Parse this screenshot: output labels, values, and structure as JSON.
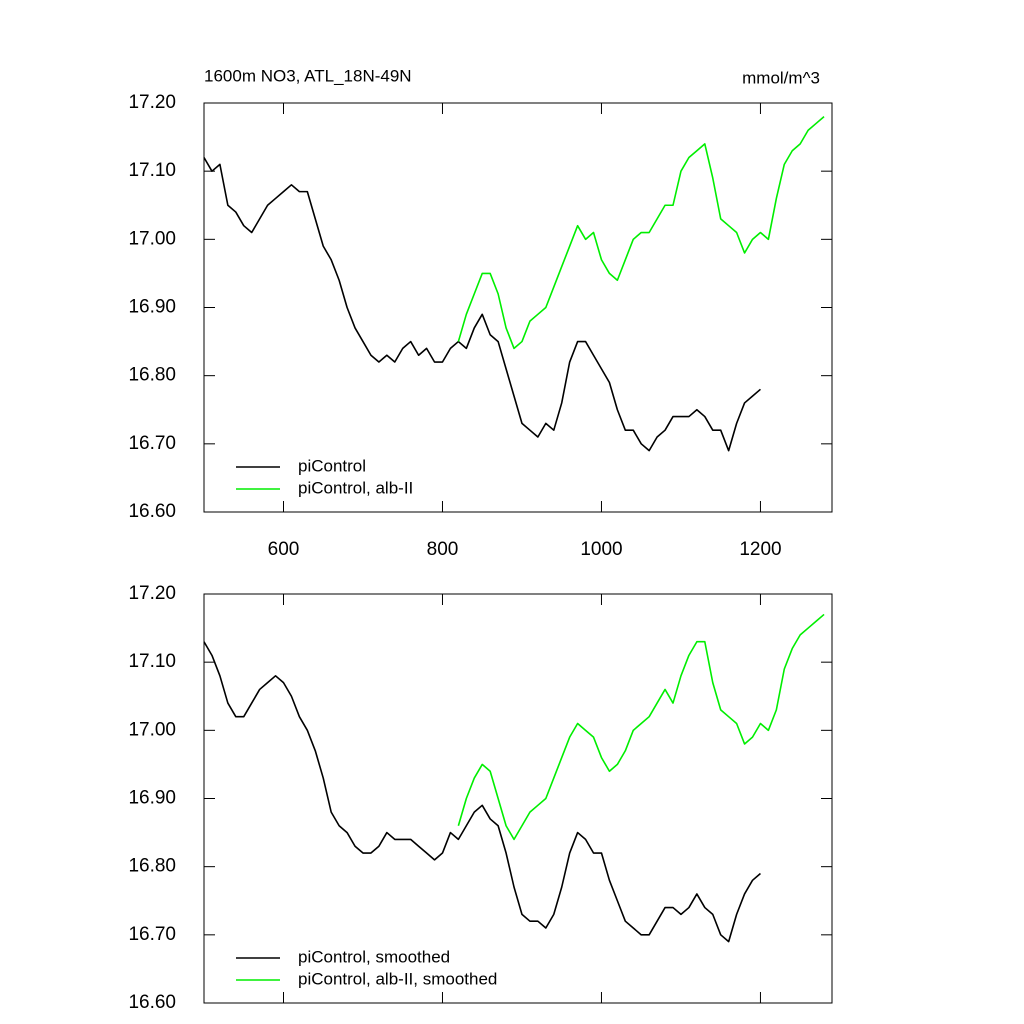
{
  "chart_data": [
    {
      "type": "line",
      "title": "1600m NO3, ATL_18N-49N",
      "right_title": "mmol/m^3",
      "x": [
        500,
        510,
        520,
        530,
        540,
        550,
        560,
        570,
        580,
        590,
        600,
        610,
        620,
        630,
        640,
        650,
        660,
        670,
        680,
        690,
        700,
        710,
        720,
        730,
        740,
        750,
        760,
        770,
        780,
        790,
        800,
        810,
        820,
        830,
        840,
        850,
        860,
        870,
        880,
        890,
        900,
        910,
        920,
        930,
        940,
        950,
        960,
        970,
        980,
        990,
        1000,
        1010,
        1020,
        1030,
        1040,
        1050,
        1060,
        1070,
        1080,
        1090,
        1100,
        1110,
        1120,
        1130,
        1140,
        1150,
        1160,
        1170,
        1180,
        1190,
        1200,
        1210,
        1220,
        1230,
        1240,
        1250,
        1260,
        1270,
        1280
      ],
      "series": [
        {
          "name": "piControl",
          "color": "#000000",
          "values": [
            17.12,
            17.1,
            17.11,
            17.05,
            17.04,
            17.02,
            17.01,
            17.03,
            17.05,
            17.06,
            17.07,
            17.08,
            17.07,
            17.07,
            17.03,
            16.99,
            16.97,
            16.94,
            16.9,
            16.87,
            16.85,
            16.83,
            16.82,
            16.83,
            16.82,
            16.84,
            16.85,
            16.83,
            16.84,
            16.82,
            16.82,
            16.84,
            16.85,
            16.84,
            16.87,
            16.89,
            16.86,
            16.85,
            16.81,
            16.77,
            16.73,
            16.72,
            16.71,
            16.73,
            16.72,
            16.76,
            16.82,
            16.85,
            16.85,
            16.83,
            16.81,
            16.79,
            16.75,
            16.72,
            16.72,
            16.7,
            16.69,
            16.71,
            16.72,
            16.74,
            16.74,
            16.74,
            16.75,
            16.74,
            16.72,
            16.72,
            16.69,
            16.73,
            16.76,
            16.77,
            16.78,
            null,
            null,
            null,
            null,
            null,
            null,
            null,
            null
          ]
        },
        {
          "name": "piControl, alb-II",
          "color": "#00ee00",
          "values": [
            null,
            null,
            null,
            null,
            null,
            null,
            null,
            null,
            null,
            null,
            null,
            null,
            null,
            null,
            null,
            null,
            null,
            null,
            null,
            null,
            null,
            null,
            null,
            null,
            null,
            null,
            null,
            null,
            null,
            null,
            null,
            null,
            16.85,
            16.89,
            16.92,
            16.95,
            16.95,
            16.92,
            16.87,
            16.84,
            16.85,
            16.88,
            16.89,
            16.9,
            16.93,
            16.96,
            16.99,
            17.02,
            17.0,
            17.01,
            16.97,
            16.95,
            16.94,
            16.97,
            17.0,
            17.01,
            17.01,
            17.03,
            17.05,
            17.05,
            17.1,
            17.12,
            17.13,
            17.14,
            17.09,
            17.03,
            17.02,
            17.01,
            16.98,
            17.0,
            17.01,
            17.0,
            17.06,
            17.11,
            17.13,
            17.14,
            17.16,
            17.17,
            17.18
          ]
        }
      ],
      "xlim": [
        500,
        1290
      ],
      "xticks": [
        600,
        800,
        1000,
        1200
      ],
      "ylim": [
        16.6,
        17.2
      ],
      "yticks": [
        {
          "value": 16.6,
          "label": "16.60"
        },
        {
          "value": 16.7,
          "label": "16.70"
        },
        {
          "value": 16.8,
          "label": "16.80"
        },
        {
          "value": 16.9,
          "label": "16.90"
        },
        {
          "value": 17.0,
          "label": "17.00"
        },
        {
          "value": 17.1,
          "label": "17.10"
        },
        {
          "value": 17.2,
          "label": "17.20"
        }
      ],
      "legend": "lower left"
    },
    {
      "type": "line",
      "x": [
        500,
        510,
        520,
        530,
        540,
        550,
        560,
        570,
        580,
        590,
        600,
        610,
        620,
        630,
        640,
        650,
        660,
        670,
        680,
        690,
        700,
        710,
        720,
        730,
        740,
        750,
        760,
        770,
        780,
        790,
        800,
        810,
        820,
        830,
        840,
        850,
        860,
        870,
        880,
        890,
        900,
        910,
        920,
        930,
        940,
        950,
        960,
        970,
        980,
        990,
        1000,
        1010,
        1020,
        1030,
        1040,
        1050,
        1060,
        1070,
        1080,
        1090,
        1100,
        1110,
        1120,
        1130,
        1140,
        1150,
        1160,
        1170,
        1180,
        1190,
        1200,
        1210,
        1220,
        1230,
        1240,
        1250,
        1260,
        1270,
        1280
      ],
      "series": [
        {
          "name": "piControl, smoothed",
          "color": "#000000",
          "values": [
            17.13,
            17.11,
            17.08,
            17.04,
            17.02,
            17.02,
            17.04,
            17.06,
            17.07,
            17.08,
            17.07,
            17.05,
            17.02,
            17.0,
            16.97,
            16.93,
            16.88,
            16.86,
            16.85,
            16.83,
            16.82,
            16.82,
            16.83,
            16.85,
            16.84,
            16.84,
            16.84,
            16.83,
            16.82,
            16.81,
            16.82,
            16.85,
            16.84,
            16.86,
            16.88,
            16.89,
            16.87,
            16.86,
            16.82,
            16.77,
            16.73,
            16.72,
            16.72,
            16.71,
            16.73,
            16.77,
            16.82,
            16.85,
            16.84,
            16.82,
            16.82,
            16.78,
            16.75,
            16.72,
            16.71,
            16.7,
            16.7,
            16.72,
            16.74,
            16.74,
            16.73,
            16.74,
            16.76,
            16.74,
            16.73,
            16.7,
            16.69,
            16.73,
            16.76,
            16.78,
            16.79,
            null,
            null,
            null,
            null,
            null,
            null,
            null,
            null
          ]
        },
        {
          "name": "piControl, alb-II, smoothed",
          "color": "#00ee00",
          "values": [
            null,
            null,
            null,
            null,
            null,
            null,
            null,
            null,
            null,
            null,
            null,
            null,
            null,
            null,
            null,
            null,
            null,
            null,
            null,
            null,
            null,
            null,
            null,
            null,
            null,
            null,
            null,
            null,
            null,
            null,
            null,
            null,
            16.86,
            16.9,
            16.93,
            16.95,
            16.94,
            16.9,
            16.86,
            16.84,
            16.86,
            16.88,
            16.89,
            16.9,
            16.93,
            16.96,
            16.99,
            17.01,
            17.0,
            16.99,
            16.96,
            16.94,
            16.95,
            16.97,
            17.0,
            17.01,
            17.02,
            17.04,
            17.06,
            17.04,
            17.08,
            17.11,
            17.13,
            17.13,
            17.07,
            17.03,
            17.02,
            17.01,
            16.98,
            16.99,
            17.01,
            17.0,
            17.03,
            17.09,
            17.12,
            17.14,
            17.15,
            17.16,
            17.17
          ]
        }
      ],
      "xlim": [
        500,
        1290
      ],
      "ylim": [
        16.6,
        17.2
      ],
      "yticks": [
        {
          "value": 16.6,
          "label": "16.60"
        },
        {
          "value": 16.7,
          "label": "16.70"
        },
        {
          "value": 16.8,
          "label": "16.80"
        },
        {
          "value": 16.9,
          "label": "16.90"
        },
        {
          "value": 17.0,
          "label": "17.00"
        },
        {
          "value": 17.1,
          "label": "17.10"
        },
        {
          "value": 17.2,
          "label": "17.20"
        }
      ],
      "legend": "lower left"
    }
  ]
}
